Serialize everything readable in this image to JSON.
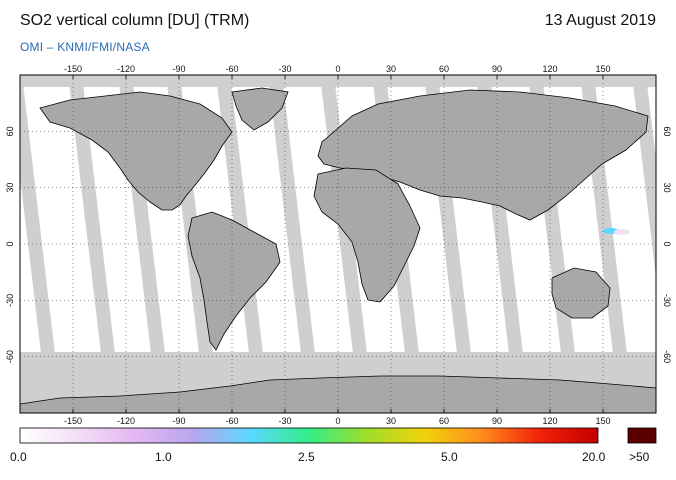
{
  "header": {
    "title": "SO2 vertical column [DU] (TRM)",
    "date": "13 August 2019",
    "credit": "OMI  –  KNMI/FMI/NASA"
  },
  "map": {
    "lon_ticks_top": [
      "-150",
      "-120",
      "-90",
      "-60",
      "-30",
      "0",
      "30",
      "60",
      "90",
      "120",
      "150"
    ],
    "lon_ticks_bottom": [
      "-150",
      "-120",
      "-90",
      "-60",
      "-30",
      "0",
      "30",
      "60",
      "90",
      "120",
      "150"
    ],
    "lat_ticks": [
      "60",
      "30",
      "0",
      "-30",
      "-60"
    ],
    "no_data_color": "#cfcfcf",
    "land_color": "#a8a8a8",
    "ocean_color": "#ffffff"
  },
  "colorbar": {
    "colors": [
      "#ffffff",
      "#f3def6",
      "#e4b7f2",
      "#b7a6ee",
      "#5ad8ff",
      "#33ee88",
      "#9fdd2a",
      "#f2d20a",
      "#ff8a1e",
      "#f2220a",
      "#c20000"
    ],
    "overflow_color": "#5a0000",
    "labels": [
      "0.0",
      "1.0",
      "2.5",
      "5.0",
      "20.0",
      ">50"
    ]
  }
}
